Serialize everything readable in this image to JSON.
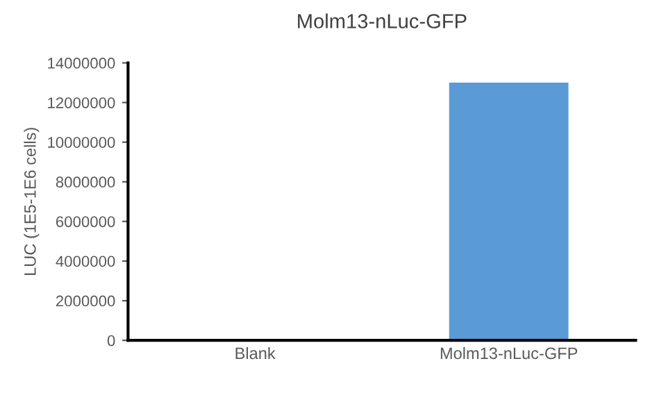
{
  "chart_data": {
    "type": "bar",
    "title": "Molm13-nLuc-GFP",
    "ylabel": "LUC (1E5-1E6 cells)",
    "categories": [
      "Blank",
      "Molm13-nLuc-GFP"
    ],
    "series": [
      {
        "color": "#5b9bd5",
        "values": [
          0,
          13000000
        ]
      }
    ],
    "ylim": [
      0,
      14000000
    ],
    "yticks": [
      0,
      2000000,
      4000000,
      6000000,
      8000000,
      10000000,
      12000000,
      14000000
    ]
  }
}
